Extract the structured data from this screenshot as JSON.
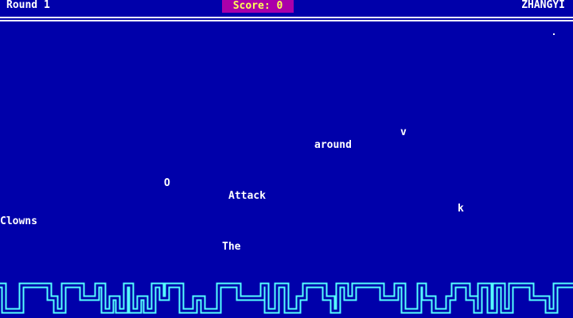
{
  "header": {
    "round_label": "Round 1",
    "score_label": "Score: 0",
    "player_name": "ZHANGYI"
  },
  "falling_words": [
    {
      "text": "v"
    },
    {
      "text": "around"
    },
    {
      "text": "O"
    },
    {
      "text": "Attack"
    },
    {
      "text": "k"
    },
    {
      "text": "Clowns"
    },
    {
      "text": "The"
    }
  ],
  "colors": {
    "background": "#0000aa",
    "score_bg": "#aa00aa",
    "score_text": "#ffff55",
    "skyline": "#55ffff",
    "text": "#ffffff"
  }
}
